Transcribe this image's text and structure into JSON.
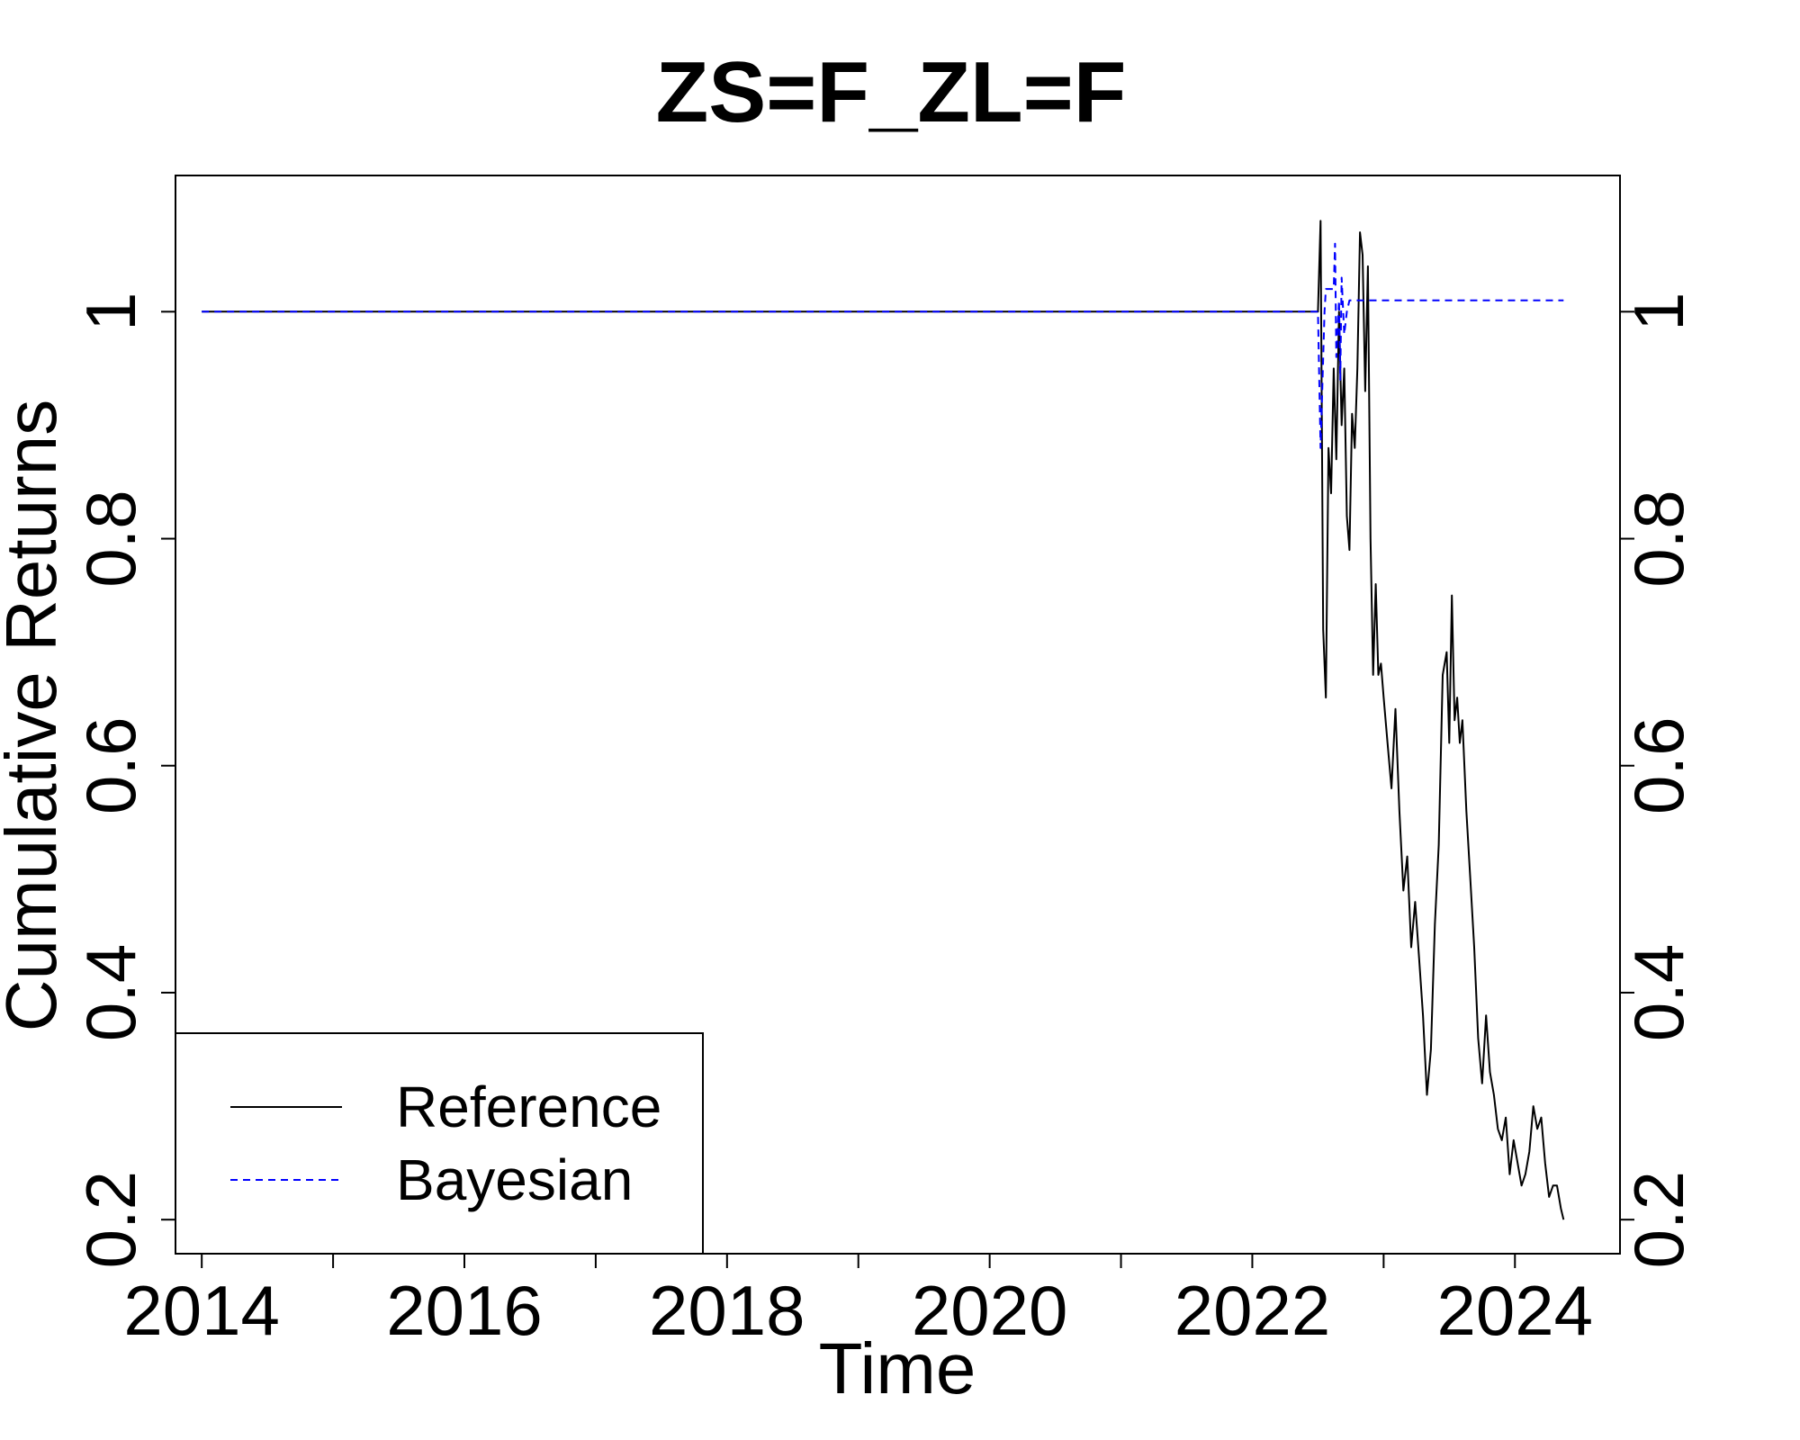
{
  "chart_data": {
    "type": "line",
    "title": "ZS=F_ZL=F",
    "xlabel": "Time",
    "ylabel": "Cumulative Returns",
    "xlim": [
      2013.8,
      2024.8
    ],
    "ylim": [
      0.17,
      1.12
    ],
    "x_ticks": [
      2014,
      2015,
      2016,
      2017,
      2018,
      2019,
      2020,
      2021,
      2022,
      2023,
      2024
    ],
    "x_tick_labels": [
      "2014",
      "",
      "2016",
      "",
      "2018",
      "",
      "2020",
      "",
      "2022",
      "",
      "2024"
    ],
    "y_ticks": [
      0.2,
      0.4,
      0.6,
      0.8,
      1.0
    ],
    "y_tick_labels": [
      "0.2",
      "0.4",
      "0.6",
      "0.8",
      "1"
    ],
    "grid": false,
    "legend_position": "bottom-left",
    "series": [
      {
        "name": "Reference",
        "color": "#000000",
        "dash": "solid",
        "x": [
          2014.0,
          2021.6,
          2022.5,
          2022.52,
          2022.54,
          2022.56,
          2022.58,
          2022.6,
          2022.62,
          2022.64,
          2022.66,
          2022.68,
          2022.7,
          2022.72,
          2022.74,
          2022.76,
          2022.78,
          2022.8,
          2022.82,
          2022.84,
          2022.86,
          2022.88,
          2022.9,
          2022.92,
          2022.94,
          2022.96,
          2022.98,
          2023.0,
          2023.03,
          2023.06,
          2023.09,
          2023.12,
          2023.15,
          2023.18,
          2023.21,
          2023.24,
          2023.27,
          2023.3,
          2023.33,
          2023.36,
          2023.39,
          2023.42,
          2023.45,
          2023.48,
          2023.5,
          2023.52,
          2023.54,
          2023.56,
          2023.58,
          2023.6,
          2023.63,
          2023.66,
          2023.69,
          2023.72,
          2023.75,
          2023.78,
          2023.81,
          2023.84,
          2023.87,
          2023.9,
          2023.93,
          2023.96,
          2023.99,
          2024.02,
          2024.05,
          2024.08,
          2024.11,
          2024.14,
          2024.17,
          2024.2,
          2024.23,
          2024.26,
          2024.29,
          2024.32,
          2024.35,
          2024.37
        ],
        "y": [
          1.0,
          1.0,
          1.0,
          1.08,
          0.72,
          0.66,
          0.88,
          0.84,
          0.95,
          0.87,
          1.0,
          0.9,
          0.95,
          0.82,
          0.79,
          0.91,
          0.88,
          0.95,
          1.07,
          1.05,
          0.93,
          1.04,
          0.8,
          0.68,
          0.76,
          0.68,
          0.69,
          0.66,
          0.62,
          0.58,
          0.65,
          0.56,
          0.49,
          0.52,
          0.44,
          0.48,
          0.43,
          0.38,
          0.31,
          0.35,
          0.46,
          0.53,
          0.68,
          0.7,
          0.62,
          0.75,
          0.64,
          0.66,
          0.62,
          0.64,
          0.56,
          0.5,
          0.44,
          0.36,
          0.32,
          0.38,
          0.33,
          0.31,
          0.28,
          0.27,
          0.29,
          0.24,
          0.27,
          0.25,
          0.23,
          0.24,
          0.26,
          0.3,
          0.28,
          0.29,
          0.25,
          0.22,
          0.23,
          0.23,
          0.21,
          0.2
        ]
      },
      {
        "name": "Bayesian",
        "color": "#0000ff",
        "dash": "dashed",
        "x": [
          2014.0,
          2022.5,
          2022.52,
          2022.55,
          2022.56,
          2022.62,
          2022.63,
          2022.64,
          2022.66,
          2022.67,
          2022.68,
          2022.7,
          2022.72,
          2022.74,
          2022.76,
          2022.78,
          2022.8,
          2023.0,
          2024.37
        ],
        "y": [
          1.0,
          1.0,
          0.88,
          1.0,
          1.02,
          1.02,
          1.06,
          0.96,
          1.01,
          0.94,
          1.03,
          0.98,
          1.0,
          1.01,
          1.01,
          1.01,
          1.01,
          1.01,
          1.01
        ]
      }
    ]
  }
}
